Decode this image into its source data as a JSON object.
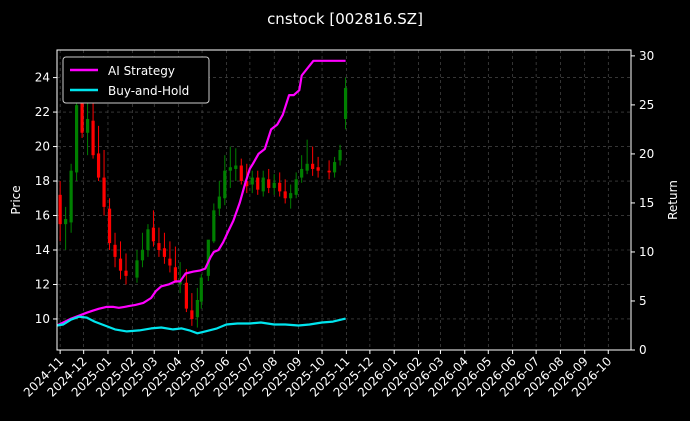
{
  "chart_data": {
    "type": "line",
    "title": "cnstock [002816.SZ]",
    "ylabel": "Price",
    "y2label": "Return",
    "ylim": [
      8.2,
      25.6
    ],
    "y2lim": [
      0,
      30.6
    ],
    "yticks": [
      10,
      12,
      14,
      16,
      18,
      20,
      22,
      24
    ],
    "y2ticks": [
      0,
      5,
      10,
      15,
      20,
      25,
      30
    ],
    "xlim": [
      "2024-10-28",
      "2026-10-30"
    ],
    "xticks": [
      "2024-11",
      "2024-12",
      "2025-01",
      "2025-02",
      "2025-03",
      "2025-04",
      "2025-05",
      "2025-06",
      "2025-07",
      "2025-08",
      "2025-09",
      "2025-10",
      "2025-11",
      "2025-12",
      "2026-01",
      "2026-02",
      "2026-03",
      "2026-04",
      "2026-05",
      "2026-06",
      "2026-07",
      "2026-08",
      "2026-09",
      "2026-10"
    ],
    "grid": true,
    "legend": "top-left",
    "colors": {
      "background": "#000000",
      "up": "#008000",
      "down": "#ff0000",
      "ai": "#ff00ff",
      "bh": "#00e5ee",
      "grid": "#555555"
    },
    "candles": {
      "dates": [
        "2024-11-01",
        "2024-11-08",
        "2024-11-15",
        "2024-11-22",
        "2024-11-29",
        "2024-12-06",
        "2024-12-13",
        "2024-12-20",
        "2024-12-27",
        "2025-01-03",
        "2025-01-10",
        "2025-01-17",
        "2025-01-24",
        "2025-02-07",
        "2025-02-14",
        "2025-02-21",
        "2025-02-28",
        "2025-03-07",
        "2025-03-14",
        "2025-03-21",
        "2025-03-28",
        "2025-04-03",
        "2025-04-11",
        "2025-04-18",
        "2025-04-25",
        "2025-04-30",
        "2025-05-09",
        "2025-05-16",
        "2025-05-23",
        "2025-05-30",
        "2025-06-06",
        "2025-06-13",
        "2025-06-20",
        "2025-06-27",
        "2025-07-04",
        "2025-07-11",
        "2025-07-18",
        "2025-07-25",
        "2025-08-01",
        "2025-08-08",
        "2025-08-15",
        "2025-08-22",
        "2025-08-29",
        "2025-09-05",
        "2025-09-12",
        "2025-09-19",
        "2025-09-26",
        "2025-10-10",
        "2025-10-17",
        "2025-10-24",
        "2025-10-31"
      ],
      "open": [
        17.2,
        15.5,
        15.6,
        18.5,
        22.5,
        20.8,
        21.5,
        19.6,
        18.2,
        16.4,
        14.3,
        13.5,
        12.8,
        12.4,
        13.4,
        14.0,
        15.3,
        14.4,
        14.1,
        13.5,
        13.0,
        12.0,
        12.1,
        10.5,
        10.1,
        11.0,
        12.5,
        14.5,
        16.4,
        17.0,
        18.6,
        18.7,
        18.9,
        18.0,
        17.8,
        18.2,
        17.4,
        18.1,
        17.6,
        17.9,
        17.4,
        17.0,
        17.2,
        18.2,
        18.6,
        19.0,
        18.8,
        18.6,
        18.5,
        19.2,
        21.6
      ],
      "high": [
        18.0,
        16.5,
        19.0,
        23.0,
        23.5,
        22.8,
        22.6,
        21.2,
        19.8,
        17.0,
        15.0,
        14.5,
        13.8,
        14.0,
        15.0,
        15.5,
        16.3,
        15.3,
        15.0,
        14.5,
        14.2,
        13.3,
        12.9,
        11.5,
        11.8,
        12.6,
        14.4,
        16.7,
        18.0,
        19.5,
        20.0,
        19.9,
        19.3,
        19.0,
        18.6,
        18.6,
        18.6,
        18.7,
        18.4,
        18.5,
        18.1,
        17.8,
        18.5,
        19.5,
        20.4,
        20.0,
        19.4,
        19.2,
        19.4,
        20.1,
        24.0
      ],
      "low": [
        14.5,
        14.0,
        15.0,
        18.0,
        20.5,
        19.5,
        19.3,
        18.0,
        16.0,
        14.0,
        13.0,
        12.3,
        12.0,
        12.1,
        13.0,
        13.6,
        14.2,
        13.6,
        13.2,
        12.7,
        12.4,
        11.5,
        10.4,
        9.6,
        9.5,
        10.6,
        12.2,
        14.4,
        16.0,
        16.6,
        17.6,
        18.0,
        17.8,
        17.3,
        17.3,
        17.2,
        17.1,
        17.3,
        17.2,
        17.1,
        16.7,
        16.4,
        17.0,
        17.9,
        18.4,
        18.3,
        18.2,
        18.1,
        18.2,
        18.9,
        21.0
      ],
      "close": [
        15.5,
        15.8,
        18.6,
        22.4,
        20.8,
        21.6,
        19.5,
        18.2,
        16.5,
        14.4,
        13.6,
        12.8,
        12.5,
        13.4,
        14.0,
        15.2,
        14.5,
        14.0,
        13.6,
        13.1,
        12.1,
        12.2,
        10.6,
        10.0,
        11.1,
        12.4,
        14.6,
        16.3,
        17.1,
        18.6,
        18.8,
        18.9,
        18.0,
        17.7,
        18.2,
        17.5,
        18.2,
        17.6,
        17.9,
        17.4,
        17.0,
        17.3,
        18.1,
        18.7,
        19.0,
        18.7,
        18.6,
        18.5,
        19.1,
        19.8,
        23.4
      ]
    },
    "series": [
      {
        "name": "AI Strategy",
        "x": [
          "2024-10-28",
          "2024-11-05",
          "2024-11-15",
          "2024-11-25",
          "2024-12-05",
          "2024-12-12",
          "2024-12-20",
          "2024-12-30",
          "2025-01-08",
          "2025-01-15",
          "2025-01-22",
          "2025-02-05",
          "2025-02-15",
          "2025-02-25",
          "2025-03-03",
          "2025-03-10",
          "2025-03-20",
          "2025-03-28",
          "2025-04-03",
          "2025-04-10",
          "2025-04-20",
          "2025-04-28",
          "2025-05-05",
          "2025-05-12",
          "2025-05-16",
          "2025-05-22",
          "2025-05-28",
          "2025-06-04",
          "2025-06-10",
          "2025-06-18",
          "2025-06-25",
          "2025-07-01",
          "2025-07-05",
          "2025-07-12",
          "2025-07-20",
          "2025-07-28",
          "2025-08-05",
          "2025-08-12",
          "2025-08-20",
          "2025-08-26",
          "2025-09-02",
          "2025-09-05",
          "2025-09-20",
          "2025-10-10",
          "2025-10-31"
        ],
        "values": [
          2.5,
          2.8,
          3.2,
          3.5,
          3.8,
          4.0,
          4.2,
          4.4,
          4.4,
          4.3,
          4.4,
          4.6,
          4.8,
          5.3,
          6.0,
          6.5,
          6.7,
          7.0,
          7.0,
          7.8,
          8.0,
          8.1,
          8.3,
          9.5,
          10.0,
          10.2,
          11.0,
          12.2,
          13.2,
          15.0,
          17.0,
          18.5,
          19.0,
          20.0,
          20.5,
          22.5,
          23.0,
          24.0,
          26.0,
          26.0,
          26.5,
          28.0,
          29.5,
          29.5,
          29.5
        ]
      },
      {
        "name": "Buy-and-Hold",
        "x": [
          "2024-10-28",
          "2024-11-05",
          "2024-11-15",
          "2024-11-25",
          "2024-12-05",
          "2024-12-15",
          "2024-12-28",
          "2025-01-10",
          "2025-01-25",
          "2025-02-10",
          "2025-02-25",
          "2025-03-10",
          "2025-03-25",
          "2025-04-05",
          "2025-04-15",
          "2025-04-25",
          "2025-05-05",
          "2025-05-20",
          "2025-06-01",
          "2025-06-15",
          "2025-07-01",
          "2025-07-15",
          "2025-08-01",
          "2025-08-15",
          "2025-09-01",
          "2025-09-15",
          "2025-10-01",
          "2025-10-15",
          "2025-10-31"
        ],
        "values": [
          2.5,
          2.6,
          3.1,
          3.4,
          3.3,
          2.9,
          2.5,
          2.1,
          1.9,
          2.0,
          2.2,
          2.3,
          2.1,
          2.2,
          2.0,
          1.7,
          1.9,
          2.2,
          2.6,
          2.7,
          2.7,
          2.8,
          2.6,
          2.6,
          2.5,
          2.6,
          2.8,
          2.9,
          3.2
        ]
      }
    ]
  }
}
